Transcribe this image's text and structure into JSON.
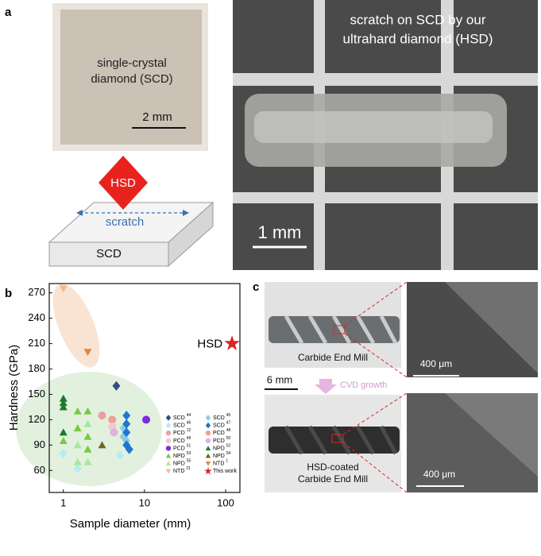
{
  "panel_labels": [
    "a",
    "b",
    "c"
  ],
  "panel_a": {
    "photo_label": [
      "single-crystal",
      "diamond (SCD)"
    ],
    "photo_scale": "2 mm",
    "schematic": {
      "indenter": "HSD",
      "arrow": "scratch",
      "substrate": "SCD"
    },
    "scratch_photo_label": [
      "scratch on SCD by our",
      "ultrahard diamond (HSD)"
    ],
    "scratch_scale": "1 mm"
  },
  "chart_data": {
    "type": "scatter",
    "x_label": "Sample diameter (mm)",
    "y_label": "Hardness (GPa)",
    "annotation": "HSD",
    "log_x": true,
    "xlim": [
      0.67,
      150
    ],
    "xticks": [
      1,
      10,
      100
    ],
    "ylim": [
      34,
      281
    ],
    "yticks": [
      60,
      90,
      120,
      150,
      180,
      210,
      240,
      270
    ],
    "legend": "lower right",
    "series": [
      {
        "name": "SCD",
        "ref": "44",
        "color": "#2f4f7f",
        "marker": "diamond",
        "x": [
          4.5
        ],
        "values": [
          160
        ]
      },
      {
        "name": "SCD",
        "ref": "45",
        "color": "#8ecae6",
        "marker": "diamond",
        "x": [
          5.5,
          5.5,
          6
        ],
        "values": [
          110,
          100,
          95
        ]
      },
      {
        "name": "SCD",
        "ref": "46",
        "color": "#b3ecf5",
        "marker": "diamond",
        "x": [
          1,
          1.5,
          5
        ],
        "values": [
          80,
          62,
          78
        ]
      },
      {
        "name": "SCD",
        "ref": "47",
        "color": "#1f77d0",
        "marker": "diamond",
        "x": [
          6,
          6,
          6,
          6,
          6.5
        ],
        "values": [
          125,
          115,
          105,
          90,
          85
        ]
      },
      {
        "name": "PCD",
        "ref": "12",
        "color": "#e8a0a0",
        "marker": "circle",
        "x": [
          3
        ],
        "values": [
          125
        ]
      },
      {
        "name": "PCD",
        "ref": "48",
        "color": "#f0a090",
        "marker": "circle",
        "x": [
          4
        ],
        "values": [
          120
        ]
      },
      {
        "name": "PCD",
        "ref": "49",
        "color": "#f5c6d0",
        "marker": "circle",
        "x": [
          4
        ],
        "values": [
          112
        ]
      },
      {
        "name": "PCD",
        "ref": "50",
        "color": "#e0b0e0",
        "marker": "circle",
        "x": [
          4.2
        ],
        "values": [
          105
        ]
      },
      {
        "name": "PCD",
        "ref": "51",
        "color": "#7b2be2",
        "marker": "circle",
        "x": [
          10.5
        ],
        "values": [
          120
        ]
      },
      {
        "name": "NPD",
        "ref": "52",
        "color": "#1a7a2a",
        "marker": "triangle",
        "x": [
          1,
          1,
          1,
          1
        ],
        "values": [
          145,
          140,
          135,
          105
        ]
      },
      {
        "name": "NPD",
        "ref": "53",
        "color": "#7ac943",
        "marker": "triangle",
        "x": [
          1,
          1.5,
          1.5,
          2,
          2,
          2
        ],
        "values": [
          95,
          130,
          110,
          130,
          100,
          85
        ]
      },
      {
        "name": "NPD",
        "ref": "54",
        "color": "#6b6b1a",
        "marker": "triangle",
        "x": [
          3
        ],
        "values": [
          90
        ]
      },
      {
        "name": "NPD",
        "ref": "55",
        "color": "#a8e6a0",
        "marker": "triangle",
        "x": [
          1.5,
          1.5,
          2,
          2
        ],
        "values": [
          90,
          70,
          115,
          70
        ]
      },
      {
        "name": "NTD",
        "ref": "1",
        "color": "#e8853a",
        "marker": "triangle-down",
        "x": [
          2
        ],
        "values": [
          200
        ]
      },
      {
        "name": "NTD",
        "ref": "21",
        "color": "#f5b98a",
        "marker": "triangle-down",
        "x": [
          1
        ],
        "values": [
          275
        ]
      },
      {
        "name": "This work",
        "color": "#d62828",
        "marker": "star",
        "x": [
          120
        ],
        "values": [
          210
        ]
      }
    ]
  },
  "panel_c": {
    "top_photo_label": "Carbide End Mill",
    "top_zoom_scale": "400 μm",
    "photo_scale": "6 mm",
    "process": "CVD growth",
    "bottom_photo_label": [
      "HSD-coated",
      "Carbide End Mill"
    ],
    "bottom_zoom_scale": "400 μm"
  }
}
